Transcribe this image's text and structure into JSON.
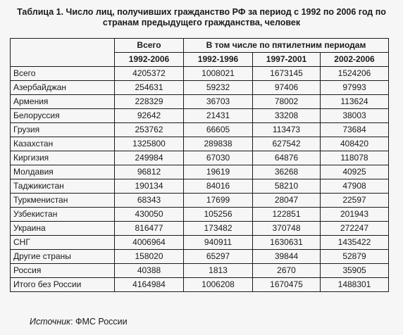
{
  "title_line1": "Таблица 1. Число лиц, получивших гражданство РФ за период с 1992 по 2006 год по",
  "title_line2": "странам предыдущего гражданства, человек",
  "table": {
    "header_total": "Всего",
    "header_periods": "В том числе по пятилетним периодам",
    "periods": [
      "1992-2006",
      "1992-1996",
      "1997-2001",
      "2002-2006"
    ],
    "rows": [
      {
        "name": "Всего",
        "values": [
          "4205372",
          "1008021",
          "1673145",
          "1524206"
        ]
      },
      {
        "name": "Азербайджан",
        "values": [
          "254631",
          "59232",
          "97406",
          "97993"
        ]
      },
      {
        "name": "Армения",
        "values": [
          "228329",
          "36703",
          "78002",
          "113624"
        ]
      },
      {
        "name": "Белоруссия",
        "values": [
          "92642",
          "21431",
          "33208",
          "38003"
        ]
      },
      {
        "name": "Грузия",
        "values": [
          "253762",
          "66605",
          "113473",
          "73684"
        ]
      },
      {
        "name": "Казахстан",
        "values": [
          "1325800",
          "289838",
          "627542",
          "408420"
        ]
      },
      {
        "name": "Киргизия",
        "values": [
          "249984",
          "67030",
          "64876",
          "118078"
        ]
      },
      {
        "name": "Молдавия",
        "values": [
          "96812",
          "19619",
          "36268",
          "40925"
        ]
      },
      {
        "name": "Таджикистан",
        "values": [
          "190134",
          "84016",
          "58210",
          "47908"
        ]
      },
      {
        "name": "Туркменистан",
        "values": [
          "68343",
          "17699",
          "28047",
          "22597"
        ]
      },
      {
        "name": "Узбекистан",
        "values": [
          "430050",
          "105256",
          "122851",
          "201943"
        ]
      },
      {
        "name": "Украина",
        "values": [
          "816477",
          "173482",
          "370748",
          "272247"
        ]
      },
      {
        "name": "СНГ",
        "values": [
          "4006964",
          "940911",
          "1630631",
          "1435422"
        ]
      },
      {
        "name": "Другие страны",
        "values": [
          "158020",
          "65297",
          "39844",
          "52879"
        ]
      },
      {
        "name": "Россия",
        "values": [
          "40388",
          "1813",
          "2670",
          "35905"
        ]
      },
      {
        "name": "Итого без России",
        "values": [
          "4164984",
          "1006208",
          "1670475",
          "1488301"
        ]
      }
    ]
  },
  "source": {
    "label": "Источник",
    "text": ": ФМС России"
  }
}
